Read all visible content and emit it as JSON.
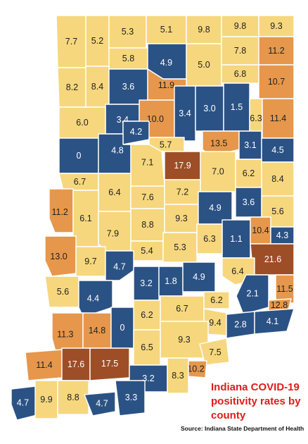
{
  "title": "Indiana COVID-19 positivity rates by county",
  "source": "Source: Indiana State Department of Health",
  "colors": {
    "low": "#f6d77d",
    "very_low": "#2b5285",
    "elevated": "#e6974b",
    "high": "#9d4e27",
    "label_dark_bg": "#ffffff",
    "label_light_bg": "#222222",
    "title": "#e01b1b"
  },
  "counties": [
    {
      "value": "7.7",
      "tier": "low"
    },
    {
      "value": "5.2",
      "tier": "low"
    },
    {
      "value": "5.3",
      "tier": "low"
    },
    {
      "value": "5.1",
      "tier": "low"
    },
    {
      "value": "9.8",
      "tier": "low"
    },
    {
      "value": "9.8",
      "tier": "low"
    },
    {
      "value": "9.3",
      "tier": "low"
    },
    {
      "value": "5.8",
      "tier": "low"
    },
    {
      "value": "4.9",
      "tier": "very_low"
    },
    {
      "value": "5.0",
      "tier": "low"
    },
    {
      "value": "7.8",
      "tier": "low"
    },
    {
      "value": "11.2",
      "tier": "elevated"
    },
    {
      "value": "8.2",
      "tier": "low"
    },
    {
      "value": "8.4",
      "tier": "low"
    },
    {
      "value": "3.6",
      "tier": "very_low"
    },
    {
      "value": "11.9",
      "tier": "elevated"
    },
    {
      "value": "6.8",
      "tier": "low"
    },
    {
      "value": "10.7",
      "tier": "elevated"
    },
    {
      "value": "3.4",
      "tier": "very_low"
    },
    {
      "value": "10.0",
      "tier": "elevated"
    },
    {
      "value": "3.4",
      "tier": "very_low"
    },
    {
      "value": "3.0",
      "tier": "very_low"
    },
    {
      "value": "1.5",
      "tier": "very_low"
    },
    {
      "value": "6.3",
      "tier": "low"
    },
    {
      "value": "11.4",
      "tier": "elevated"
    },
    {
      "value": "6.0",
      "tier": "low"
    },
    {
      "value": "4.2",
      "tier": "very_low"
    },
    {
      "value": "5.7",
      "tier": "low"
    },
    {
      "value": "13.5",
      "tier": "elevated"
    },
    {
      "value": "3.1",
      "tier": "very_low"
    },
    {
      "value": "4.5",
      "tier": "very_low"
    },
    {
      "value": "0",
      "tier": "very_low"
    },
    {
      "value": "4.8",
      "tier": "very_low"
    },
    {
      "value": "7.1",
      "tier": "low"
    },
    {
      "value": "17.9",
      "tier": "high"
    },
    {
      "value": "7.0",
      "tier": "low"
    },
    {
      "value": "6.2",
      "tier": "low"
    },
    {
      "value": "8.4",
      "tier": "low"
    },
    {
      "value": "6.7",
      "tier": "low"
    },
    {
      "value": "6.4",
      "tier": "low"
    },
    {
      "value": "7.6",
      "tier": "low"
    },
    {
      "value": "7.2",
      "tier": "low"
    },
    {
      "value": "11.2",
      "tier": "elevated"
    },
    {
      "value": "3.6",
      "tier": "very_low"
    },
    {
      "value": "5.6",
      "tier": "low"
    },
    {
      "value": "6.1",
      "tier": "low"
    },
    {
      "value": "8.8",
      "tier": "low"
    },
    {
      "value": "9.3",
      "tier": "low"
    },
    {
      "value": "4.9",
      "tier": "very_low"
    },
    {
      "value": "7.9",
      "tier": "low"
    },
    {
      "value": "1.1",
      "tier": "very_low"
    },
    {
      "value": "10.4",
      "tier": "elevated"
    },
    {
      "value": "4.3",
      "tier": "very_low"
    },
    {
      "value": "13.0",
      "tier": "elevated"
    },
    {
      "value": "5.4",
      "tier": "low"
    },
    {
      "value": "5.3",
      "tier": "low"
    },
    {
      "value": "6.3",
      "tier": "low"
    },
    {
      "value": "21.6",
      "tier": "high"
    },
    {
      "value": "9.7",
      "tier": "low"
    },
    {
      "value": "4.7",
      "tier": "very_low"
    },
    {
      "value": "6.4",
      "tier": "low"
    },
    {
      "value": "3.2",
      "tier": "very_low"
    },
    {
      "value": "1.8",
      "tier": "very_low"
    },
    {
      "value": "4.9",
      "tier": "very_low"
    },
    {
      "value": "5.6",
      "tier": "low"
    },
    {
      "value": "4.4",
      "tier": "very_low"
    },
    {
      "value": "2.1",
      "tier": "very_low"
    },
    {
      "value": "11.5",
      "tier": "elevated"
    },
    {
      "value": "6.7",
      "tier": "low"
    },
    {
      "value": "6.2",
      "tier": "low"
    },
    {
      "value": "12.8",
      "tier": "elevated"
    },
    {
      "value": "6.2",
      "tier": "low"
    },
    {
      "value": "11.3",
      "tier": "elevated"
    },
    {
      "value": "14.8",
      "tier": "elevated"
    },
    {
      "value": "0",
      "tier": "very_low"
    },
    {
      "value": "9.4",
      "tier": "low"
    },
    {
      "value": "2.8",
      "tier": "very_low"
    },
    {
      "value": "4.1",
      "tier": "very_low"
    },
    {
      "value": "9.3",
      "tier": "low"
    },
    {
      "value": "6.5",
      "tier": "low"
    },
    {
      "value": "11.4",
      "tier": "elevated"
    },
    {
      "value": "17.6",
      "tier": "high"
    },
    {
      "value": "17.5",
      "tier": "high"
    },
    {
      "value": "7.5",
      "tier": "low"
    },
    {
      "value": "10.2",
      "tier": "elevated"
    },
    {
      "value": "3.2",
      "tier": "very_low"
    },
    {
      "value": "8.3",
      "tier": "low"
    },
    {
      "value": "4.7",
      "tier": "very_low"
    },
    {
      "value": "9.9",
      "tier": "low"
    },
    {
      "value": "8.8",
      "tier": "low"
    },
    {
      "value": "4.7",
      "tier": "very_low"
    },
    {
      "value": "3.3",
      "tier": "very_low"
    }
  ]
}
